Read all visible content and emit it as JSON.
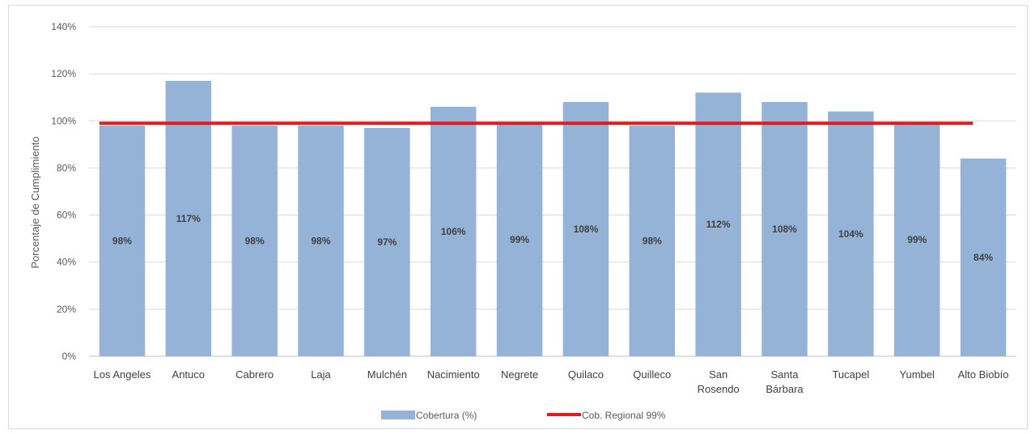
{
  "chart_data": {
    "type": "bar",
    "title": "",
    "xlabel": "",
    "ylabel": "Porcentaje de Cumplimiento",
    "ylim": [
      0,
      1.4
    ],
    "yticks": [
      "0%",
      "20%",
      "40%",
      "60%",
      "80%",
      "100%",
      "120%",
      "140%"
    ],
    "grid": true,
    "legend_position": "bottom",
    "categories": [
      [
        "Los Angeles"
      ],
      [
        "Antuco"
      ],
      [
        "Cabrero"
      ],
      [
        "Laja"
      ],
      [
        "Mulchén"
      ],
      [
        "Nacimiento"
      ],
      [
        "Negrete"
      ],
      [
        "Quilaco"
      ],
      [
        "Quilleco"
      ],
      [
        "San",
        "Rosendo"
      ],
      [
        "Santa",
        "Bárbara"
      ],
      [
        "Tucapel"
      ],
      [
        "Yumbel"
      ],
      [
        "Alto Biobío"
      ]
    ],
    "series": [
      {
        "name": "Cobertura (%)",
        "type": "bar",
        "color": "#95b3d7",
        "values": [
          0.98,
          1.17,
          0.98,
          0.98,
          0.97,
          1.06,
          0.99,
          1.08,
          0.98,
          1.12,
          1.08,
          1.04,
          0.99,
          0.84
        ],
        "labels": [
          "98%",
          "117%",
          "98%",
          "98%",
          "97%",
          "106%",
          "99%",
          "108%",
          "98%",
          "112%",
          "108%",
          "104%",
          "99%",
          "84%"
        ]
      },
      {
        "name": "Cob. Regional 99%",
        "type": "line",
        "color": "#e31a1c",
        "value": 0.99
      }
    ]
  }
}
